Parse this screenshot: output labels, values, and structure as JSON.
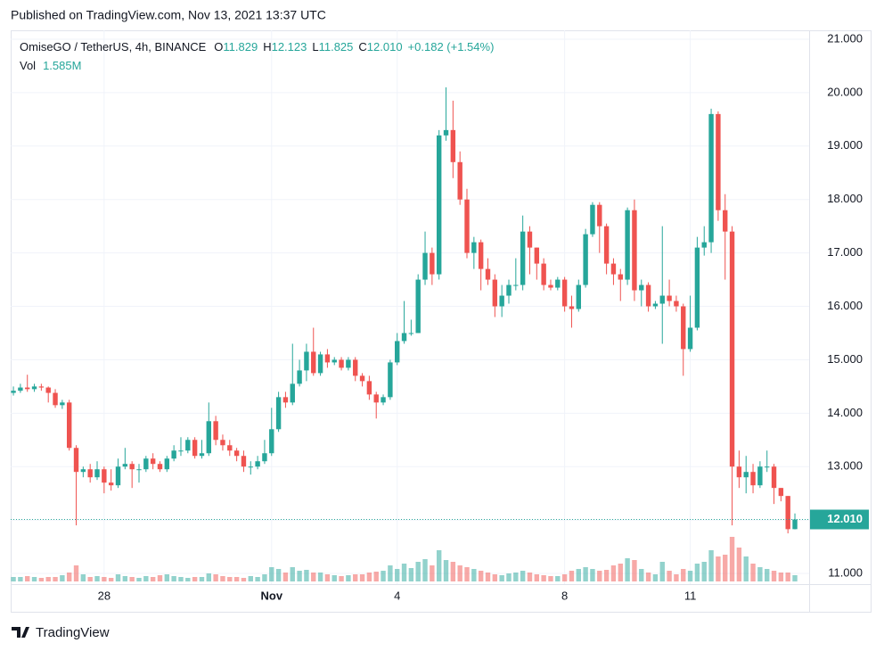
{
  "published": "Published on TradingView.com, Nov 13, 2021 13:37 UTC",
  "brand": "TradingView",
  "header": {
    "symbol": "OmiseGO / TetherUS, 4h, BINANCE",
    "ohlc": [
      {
        "label": "O",
        "value": "11.829"
      },
      {
        "label": "H",
        "value": "12.123"
      },
      {
        "label": "L",
        "value": "11.825"
      },
      {
        "label": "C",
        "value": "12.010"
      }
    ],
    "change": "+0.182 (+1.54%)",
    "volume_label": "Vol",
    "volume_value": "1.585M"
  },
  "chart_data": {
    "type": "candlestick",
    "up_color": "#26a69a",
    "down_color": "#ef5350",
    "grid": true,
    "ylim": [
      10.8,
      21.167
    ],
    "yticks": [
      {
        "value": 11,
        "label": "11.000"
      },
      {
        "value": 12,
        "label": "12.000"
      },
      {
        "value": 13,
        "label": "13.000"
      },
      {
        "value": 14,
        "label": "14.000"
      },
      {
        "value": 15,
        "label": "15.000"
      },
      {
        "value": 16,
        "label": "16.000"
      },
      {
        "value": 17,
        "label": "17.000"
      },
      {
        "value": 18,
        "label": "18.000"
      },
      {
        "value": 19,
        "label": "19.000"
      },
      {
        "value": 20,
        "label": "20.000"
      },
      {
        "value": 21,
        "label": "21.000"
      }
    ],
    "xlim": [
      -0.39,
      114.04
    ],
    "xticks": [
      {
        "value": 13,
        "label": "28"
      },
      {
        "value": 37,
        "label": "Nov"
      },
      {
        "value": 55,
        "label": "4"
      },
      {
        "value": 79,
        "label": "8"
      },
      {
        "value": 97,
        "label": "11"
      }
    ],
    "last_price": {
      "value": 12.01,
      "label": "12.010"
    },
    "open": [
      14.38,
      14.42,
      14.48,
      14.45,
      14.5,
      14.48,
      14.38,
      14.15,
      14.2,
      13.35,
      12.9,
      12.95,
      12.8,
      12.95,
      12.7,
      12.65,
      13,
      13.05,
      12.95,
      12.95,
      13.15,
      13.05,
      12.95,
      13.15,
      13.3,
      13.3,
      13.5,
      13.2,
      13.25,
      13.85,
      13.5,
      13.4,
      13.3,
      13.2,
      13,
      13,
      13.1,
      13.25,
      13.7,
      14.3,
      14.2,
      14.55,
      14.8,
      15.15,
      14.75,
      15.1,
      14.95,
      15,
      14.85,
      15,
      14.7,
      14.6,
      14.35,
      14.2,
      14.3,
      14.95,
      15.35,
      15.5,
      15.5,
      16.5,
      17,
      16.6,
      19.2,
      19.3,
      18.7,
      18,
      17,
      17.2,
      16.7,
      16.5,
      16,
      16.2,
      16.4,
      16.4,
      17.4,
      17.1,
      16.8,
      16.4,
      16.35,
      16.5,
      16,
      15.95,
      16.4,
      17.35,
      17.9,
      17.5,
      16.8,
      16.6,
      16.5,
      17.8,
      16.3,
      16.4,
      16,
      16.05,
      16.2,
      16.1,
      16,
      15.2,
      15.6,
      17.1,
      17.2,
      19.6,
      17.8,
      17.4,
      13,
      12.8,
      12.9,
      12.65,
      13,
      13,
      12.6,
      12.45,
      11.829
    ],
    "high": [
      14.5,
      14.55,
      14.72,
      14.55,
      14.55,
      14.5,
      14.45,
      14.25,
      14.25,
      13.4,
      13,
      13.05,
      13.1,
      13,
      12.95,
      13.15,
      13.35,
      13.1,
      13.05,
      13.2,
      13.25,
      13.1,
      13.2,
      13.4,
      13.55,
      13.55,
      13.55,
      13.5,
      14.2,
      13.95,
      13.6,
      13.5,
      13.35,
      13.3,
      13.1,
      13.2,
      13.5,
      14.1,
      14.4,
      14.4,
      15.3,
      15,
      15.3,
      15.6,
      15.15,
      15.2,
      15.05,
      15.05,
      15.05,
      15.05,
      14.75,
      14.7,
      14.4,
      14.35,
      15,
      15.5,
      16.1,
      15.75,
      16.6,
      17.4,
      17.1,
      19.3,
      20.1,
      19.85,
      18.9,
      18.2,
      17.3,
      17.25,
      16.9,
      16.6,
      16.4,
      16.5,
      16.9,
      17.7,
      17.5,
      17.1,
      16.9,
      16.5,
      16.55,
      16.55,
      16.2,
      16.5,
      17.45,
      17.95,
      17.95,
      17.55,
      16.9,
      16.7,
      17.85,
      18,
      16.5,
      16.45,
      16.1,
      17.5,
      16.5,
      16.2,
      16.05,
      16.2,
      17.3,
      17.5,
      19.7,
      19.65,
      18.1,
      17.5,
      13.3,
      13.2,
      13.05,
      13.1,
      13.3,
      13.05,
      12.6,
      12.45,
      12.123
    ],
    "low": [
      14.33,
      14.38,
      14.4,
      14.4,
      14.42,
      14.2,
      14.1,
      14.08,
      13.3,
      11.9,
      12.8,
      12.7,
      12.75,
      12.5,
      12.55,
      12.6,
      12.95,
      12.6,
      12.7,
      12.9,
      12.95,
      12.9,
      12.9,
      13.1,
      13.2,
      13.25,
      13.15,
      13.15,
      13.2,
      13.4,
      13.3,
      13.2,
      13.1,
      12.9,
      12.85,
      12.95,
      13.05,
      13.2,
      13.65,
      14.1,
      14.15,
      14.5,
      14.6,
      14.7,
      14.7,
      14.85,
      14.9,
      14.8,
      14.8,
      14.6,
      14.5,
      14.25,
      13.9,
      14.15,
      14.25,
      14.9,
      15.3,
      15.45,
      15.5,
      16.4,
      16.4,
      16.5,
      19.1,
      18.4,
      17.9,
      16.9,
      16.7,
      16.3,
      16.4,
      15.8,
      15.8,
      16.05,
      16.3,
      16.3,
      16.6,
      16.5,
      16.3,
      16.3,
      16.3,
      15.9,
      15.6,
      15.9,
      16.35,
      17.3,
      17,
      16.6,
      16.4,
      16.1,
      16.4,
      16.1,
      16,
      15.9,
      15.95,
      15.3,
      16,
      15.9,
      14.7,
      15.15,
      15.55,
      16.95,
      17,
      17.6,
      16.5,
      11.9,
      12.6,
      12.5,
      12.5,
      12.6,
      12.9,
      12.3,
      12.35,
      11.75,
      11.825
    ],
    "close": [
      14.42,
      14.48,
      14.45,
      14.5,
      14.48,
      14.38,
      14.15,
      14.2,
      13.35,
      12.9,
      12.95,
      12.8,
      12.95,
      12.7,
      12.65,
      13,
      13.05,
      12.95,
      12.95,
      13.15,
      13.05,
      12.95,
      13.15,
      13.3,
      13.3,
      13.5,
      13.2,
      13.25,
      13.85,
      13.5,
      13.4,
      13.3,
      13.2,
      13,
      13,
      13.1,
      13.25,
      13.7,
      14.3,
      14.2,
      14.55,
      14.8,
      15.15,
      14.75,
      15.1,
      14.95,
      15,
      14.85,
      15,
      14.7,
      14.6,
      14.35,
      14.2,
      14.3,
      14.95,
      15.35,
      15.5,
      15.5,
      16.5,
      17,
      16.6,
      19.2,
      19.3,
      18.7,
      18,
      17,
      17.2,
      16.7,
      16.5,
      16,
      16.2,
      16.4,
      16.4,
      17.4,
      17.1,
      16.8,
      16.4,
      16.35,
      16.5,
      16,
      15.95,
      16.4,
      17.35,
      17.9,
      17.5,
      16.8,
      16.6,
      16.5,
      17.8,
      16.3,
      16.4,
      16,
      16.05,
      16.2,
      16.1,
      16,
      15.2,
      15.6,
      17.1,
      17.2,
      19.6,
      17.8,
      17.4,
      13,
      12.8,
      12.9,
      12.65,
      13,
      13,
      12.6,
      12.45,
      11.829,
      12.01
    ],
    "volume": [
      1130000,
      1130000,
      1356000,
      1130000,
      904000,
      1130000,
      1130000,
      1582000,
      2260000,
      4068000,
      1808000,
      1130000,
      1356000,
      1130000,
      904000,
      1808000,
      1356000,
      1130000,
      904000,
      1356000,
      1130000,
      1582000,
      1808000,
      1356000,
      1130000,
      904000,
      1130000,
      1130000,
      2034000,
      1808000,
      1356000,
      1130000,
      1130000,
      904000,
      1356000,
      1130000,
      1808000,
      3616000,
      3164000,
      2260000,
      3616000,
      2712000,
      2938000,
      2260000,
      2260000,
      1808000,
      1582000,
      1356000,
      1582000,
      1808000,
      1808000,
      2260000,
      2486000,
      2712000,
      4068000,
      3164000,
      4520000,
      3390000,
      4972000,
      5650000,
      4068000,
      7910000,
      5424000,
      4972000,
      4068000,
      3616000,
      3164000,
      2712000,
      2260000,
      1808000,
      1582000,
      2034000,
      2260000,
      2712000,
      2260000,
      1808000,
      1582000,
      1356000,
      1356000,
      1808000,
      2712000,
      3164000,
      3616000,
      3164000,
      2712000,
      2938000,
      4068000,
      4520000,
      5876000,
      5424000,
      3164000,
      2260000,
      1808000,
      4972000,
      2712000,
      1808000,
      3164000,
      2712000,
      4520000,
      4972000,
      7910000,
      6328000,
      6780000,
      11300000,
      8588000,
      6328000,
      4520000,
      3616000,
      3164000,
      2712000,
      2260000,
      2260000,
      1585000
    ]
  }
}
